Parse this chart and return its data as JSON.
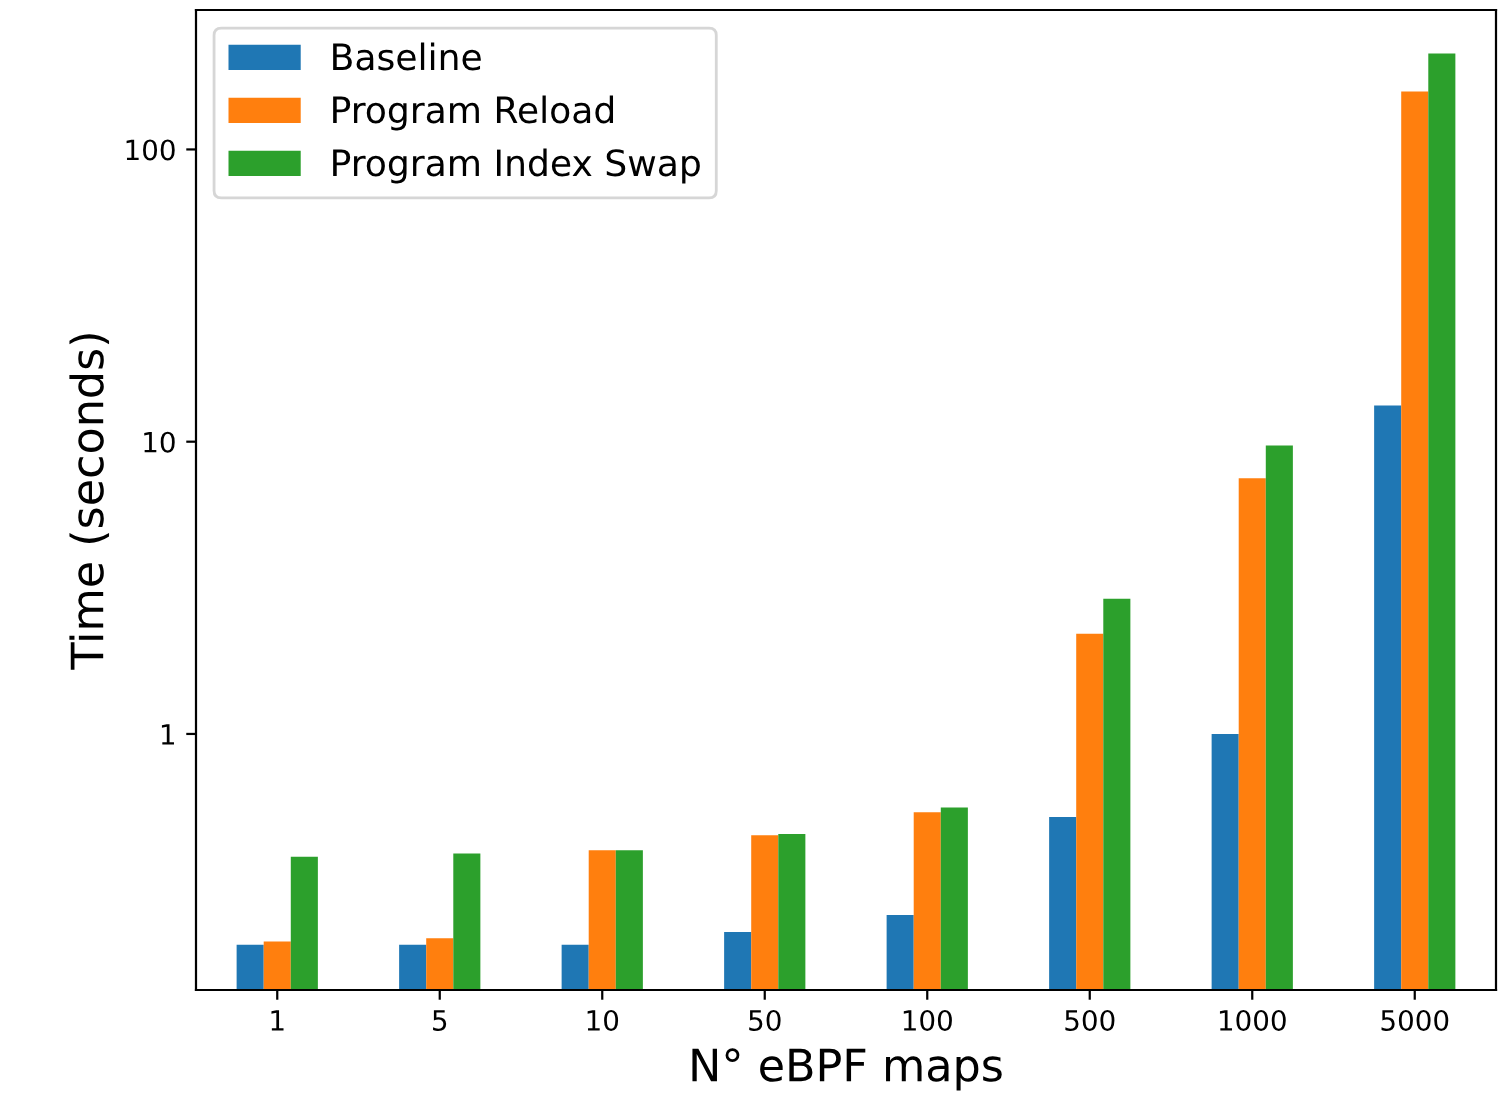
{
  "chart_data": {
    "type": "bar",
    "xlabel": "N° eBPF maps",
    "ylabel": "Time (seconds)",
    "categories": [
      "1",
      "5",
      "10",
      "50",
      "100",
      "500",
      "1000",
      "5000"
    ],
    "series": [
      {
        "name": "Baseline",
        "color": "#1f77b4",
        "values": [
          0.19,
          0.19,
          0.19,
          0.21,
          0.24,
          0.52,
          1.0,
          13.3
        ]
      },
      {
        "name": "Program Reload",
        "color": "#ff7f0e",
        "values": [
          0.195,
          0.2,
          0.4,
          0.45,
          0.54,
          2.2,
          7.5,
          158
        ]
      },
      {
        "name": "Program Index Swap",
        "color": "#2ca02c",
        "values": [
          0.38,
          0.39,
          0.4,
          0.455,
          0.56,
          2.9,
          9.7,
          213
        ]
      }
    ],
    "log": true,
    "ylim": [
      0.133,
      300
    ],
    "yticks": [
      1,
      10,
      100
    ],
    "legend": "top left",
    "grid": false
  }
}
